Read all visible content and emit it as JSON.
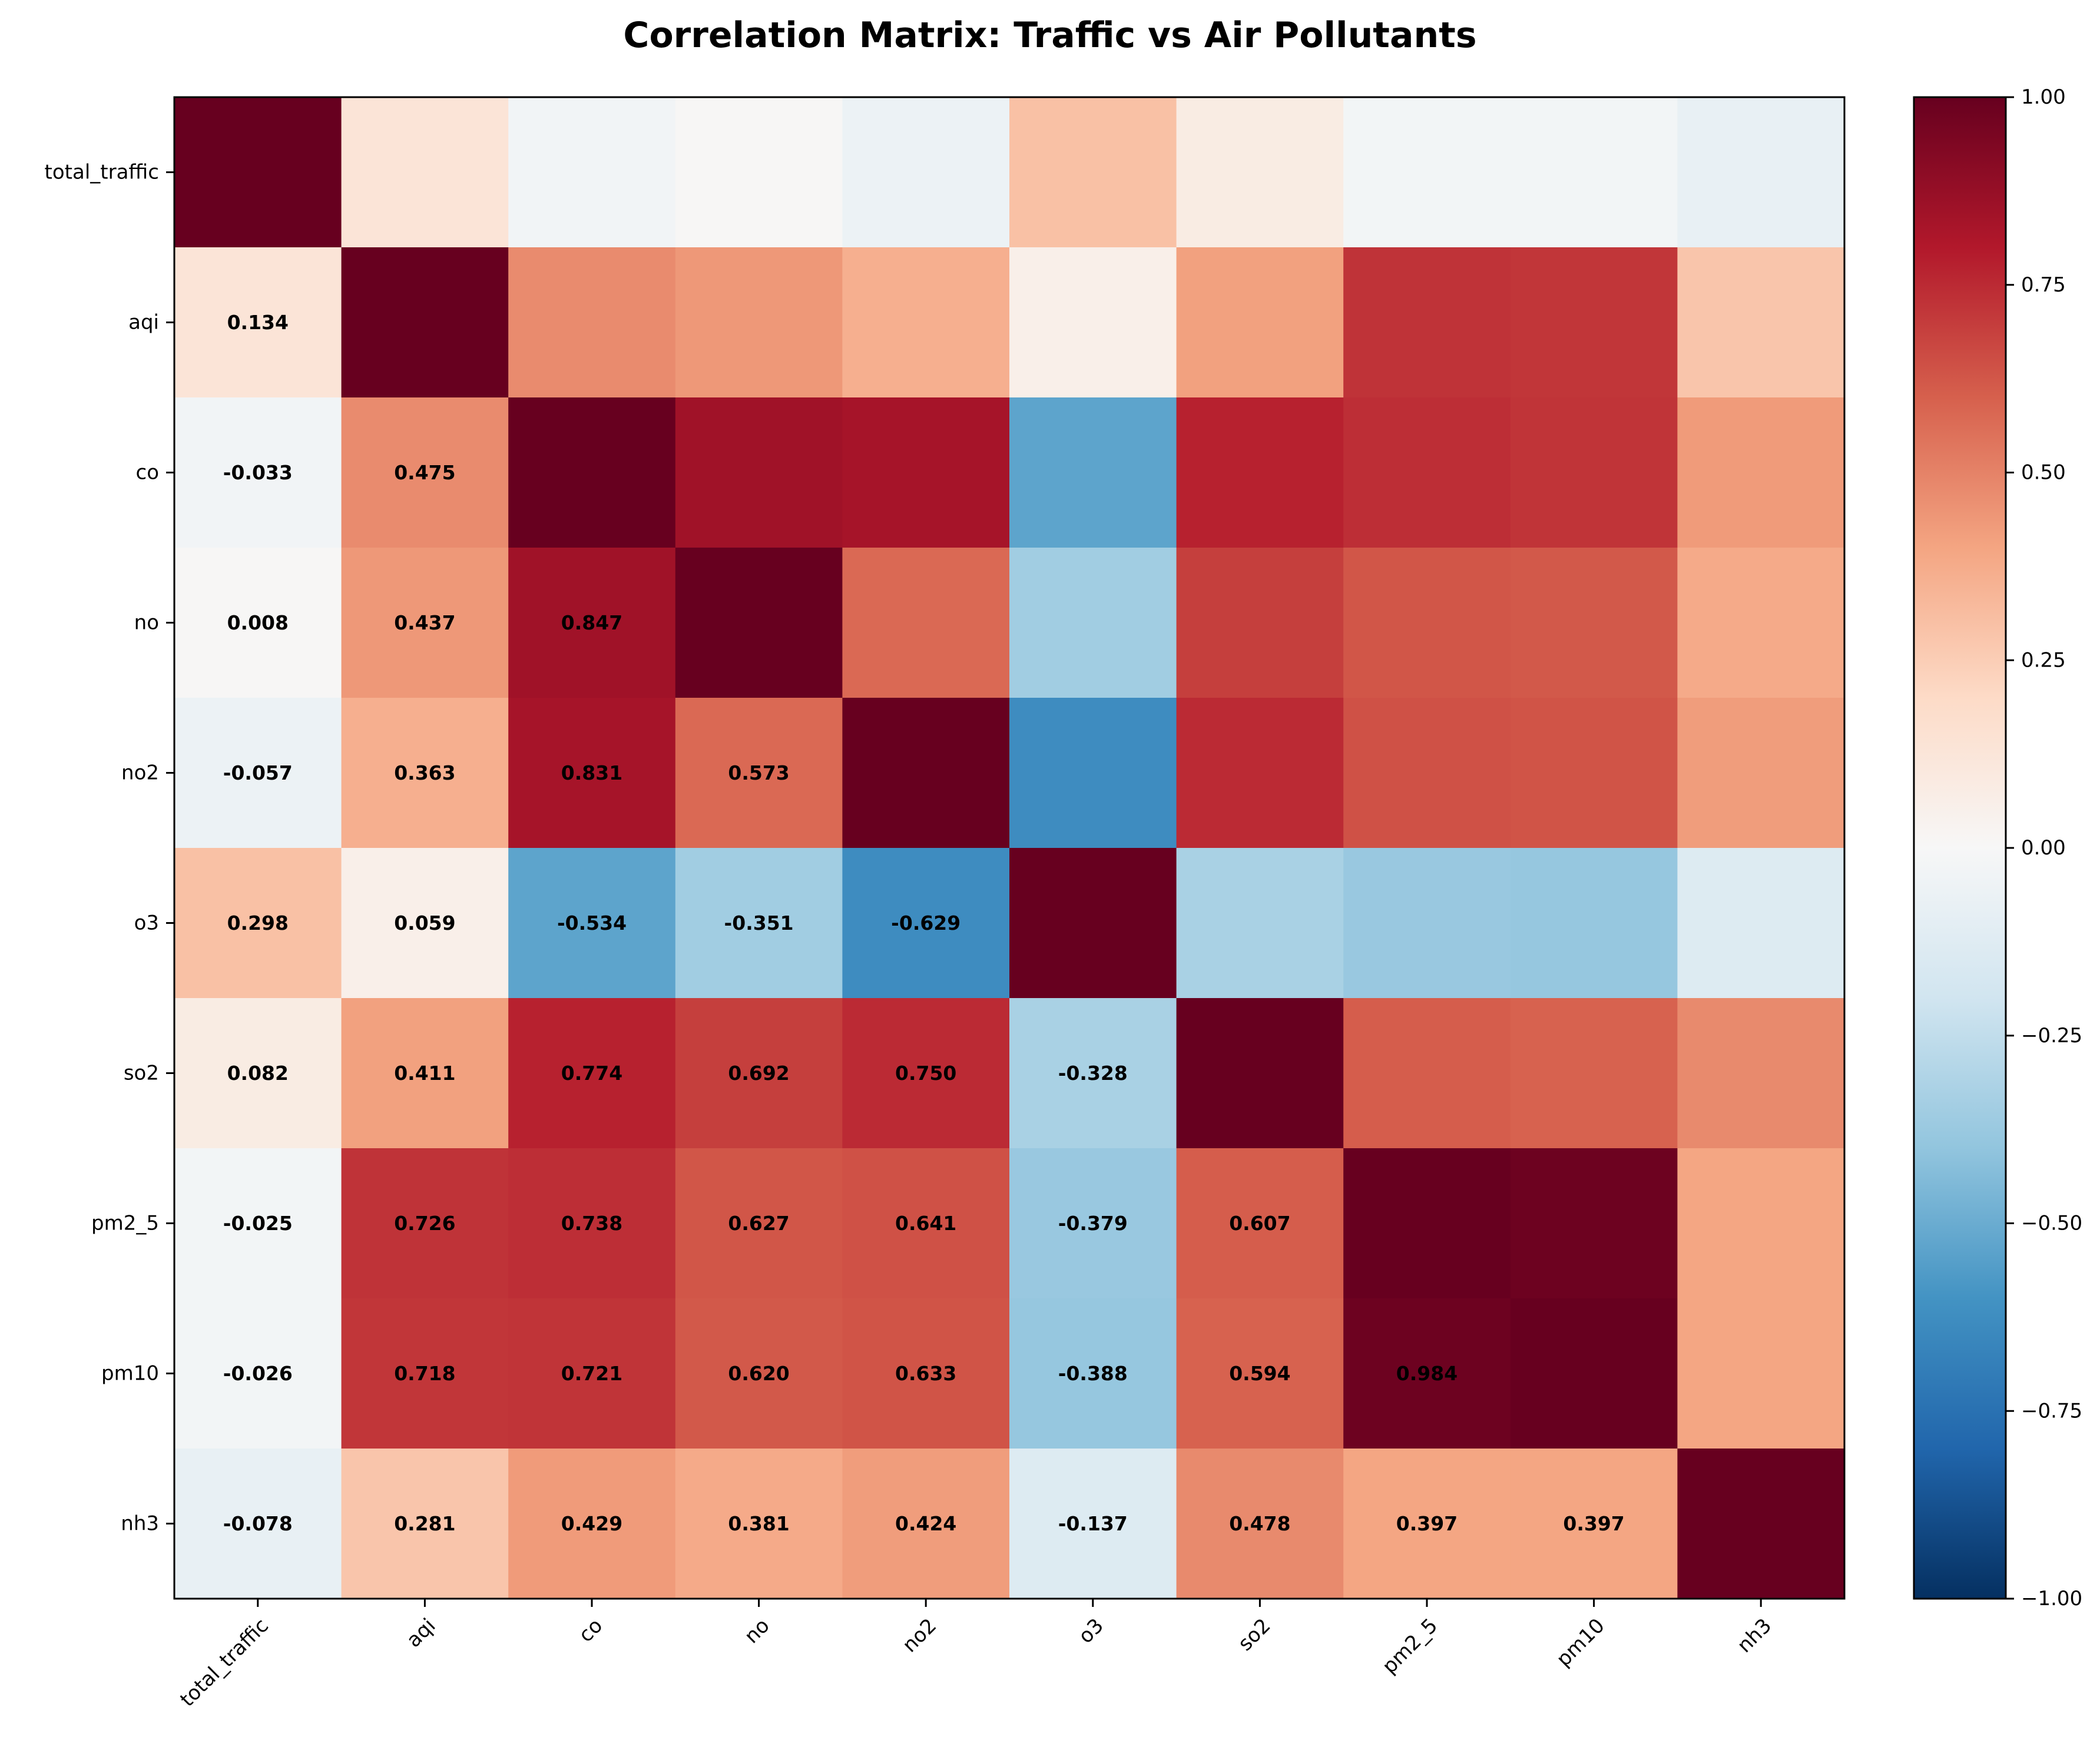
{
  "chart_data": {
    "type": "heatmap",
    "title": "Correlation Matrix: Traffic vs Air Pollutants",
    "variables": [
      "total_traffic",
      "aqi",
      "co",
      "no",
      "no2",
      "o3",
      "so2",
      "pm2_5",
      "pm10",
      "nh3"
    ],
    "matrix": [
      [
        1.0,
        0.134,
        -0.033,
        0.008,
        -0.057,
        0.298,
        0.082,
        -0.025,
        -0.026,
        -0.078
      ],
      [
        0.134,
        1.0,
        0.475,
        0.437,
        0.363,
        0.059,
        0.411,
        0.726,
        0.718,
        0.281
      ],
      [
        -0.033,
        0.475,
        1.0,
        0.847,
        0.831,
        -0.534,
        0.774,
        0.738,
        0.721,
        0.429
      ],
      [
        0.008,
        0.437,
        0.847,
        1.0,
        0.573,
        -0.351,
        0.692,
        0.627,
        0.62,
        0.381
      ],
      [
        -0.057,
        0.363,
        0.831,
        0.573,
        1.0,
        -0.629,
        0.75,
        0.641,
        0.633,
        0.424
      ],
      [
        0.298,
        0.059,
        -0.534,
        -0.351,
        -0.629,
        1.0,
        -0.328,
        -0.379,
        -0.388,
        -0.137
      ],
      [
        0.082,
        0.411,
        0.774,
        0.692,
        0.75,
        -0.328,
        1.0,
        0.607,
        0.594,
        0.478
      ],
      [
        -0.025,
        0.726,
        0.738,
        0.627,
        0.641,
        -0.379,
        0.607,
        1.0,
        0.984,
        0.397
      ],
      [
        -0.026,
        0.718,
        0.721,
        0.62,
        0.633,
        -0.388,
        0.594,
        0.984,
        1.0,
        0.397
      ],
      [
        -0.078,
        0.281,
        0.429,
        0.381,
        0.424,
        -0.137,
        0.478,
        0.397,
        0.397,
        1.0
      ]
    ],
    "annotations": "lower-triangle",
    "value_format": "3 decimals",
    "colormap": "RdBu_r",
    "vmin": -1.0,
    "vmax": 1.0,
    "colorbar_ticks": [
      "1.00",
      "0.75",
      "0.50",
      "0.25",
      "0.00",
      "−0.25",
      "−0.50",
      "−0.75",
      "−1.00"
    ],
    "colorbar_tick_values": [
      1.0,
      0.75,
      0.5,
      0.25,
      0.0,
      -0.25,
      -0.5,
      -0.75,
      -1.0
    ]
  }
}
